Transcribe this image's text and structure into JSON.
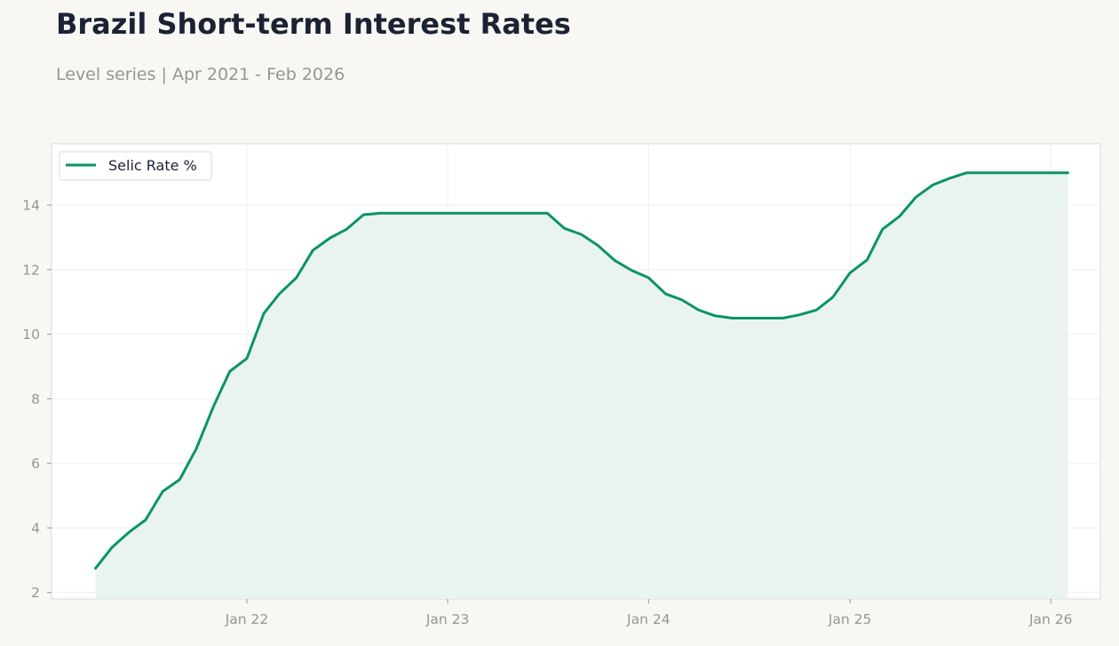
{
  "title": "Brazil Short-term Interest Rates",
  "subtitle": "Level series | Apr 2021 - Feb 2026",
  "colors": {
    "background": "#f8f7f4",
    "plot_background": "#ffffff",
    "line": "#0a9468",
    "fill": "#e9f4f0",
    "grid": "#eeeeee",
    "axis_text": "#999590",
    "title_text": "#1b2233"
  },
  "chart_data": {
    "type": "area",
    "title": "Brazil Short-term Interest Rates",
    "subtitle": "Level series | Apr 2021 - Feb 2026",
    "xlabel": "",
    "ylabel": "",
    "x_start": "2021-04",
    "x_ticks": [
      "Jan 22",
      "Jan 23",
      "Jan 24",
      "Jan 25",
      "Jan 26"
    ],
    "y_ticks": [
      2,
      4,
      6,
      8,
      10,
      12,
      14
    ],
    "xlim": [
      "2021-01-11",
      "2026-04-01"
    ],
    "ylim": [
      1.8,
      15.9
    ],
    "grid": true,
    "legend_position": "top-left",
    "series": [
      {
        "name": "Selic Rate %",
        "x": [
          "2021-04",
          "2021-05",
          "2021-06",
          "2021-07",
          "2021-08",
          "2021-09",
          "2021-10",
          "2021-11",
          "2021-12",
          "2022-01",
          "2022-02",
          "2022-03",
          "2022-04",
          "2022-05",
          "2022-06",
          "2022-07",
          "2022-08",
          "2022-09",
          "2022-10",
          "2022-11",
          "2022-12",
          "2023-01",
          "2023-02",
          "2023-03",
          "2023-04",
          "2023-05",
          "2023-06",
          "2023-07",
          "2023-08",
          "2023-09",
          "2023-10",
          "2023-11",
          "2023-12",
          "2024-01",
          "2024-02",
          "2024-03",
          "2024-04",
          "2024-05",
          "2024-06",
          "2024-07",
          "2024-08",
          "2024-09",
          "2024-10",
          "2024-11",
          "2024-12",
          "2025-01",
          "2025-02",
          "2025-03",
          "2025-04",
          "2025-05",
          "2025-06",
          "2025-07",
          "2025-08",
          "2025-09",
          "2025-10",
          "2025-11",
          "2025-12",
          "2026-01",
          "2026-02"
        ],
        "values": [
          2.75,
          3.4,
          3.87,
          4.25,
          5.13,
          5.5,
          6.45,
          7.75,
          8.85,
          9.25,
          10.65,
          11.25,
          11.75,
          12.6,
          12.98,
          13.25,
          13.7,
          13.75,
          13.75,
          13.75,
          13.75,
          13.75,
          13.75,
          13.75,
          13.75,
          13.75,
          13.75,
          13.75,
          13.28,
          13.09,
          12.75,
          12.28,
          11.98,
          11.75,
          11.25,
          11.07,
          10.75,
          10.57,
          10.5,
          10.5,
          10.5,
          10.5,
          10.6,
          10.75,
          11.15,
          11.9,
          12.3,
          13.25,
          13.65,
          14.25,
          14.63,
          14.83,
          15.0,
          15.0,
          15.0,
          15.0,
          15.0,
          15.0,
          15.0
        ]
      }
    ]
  }
}
